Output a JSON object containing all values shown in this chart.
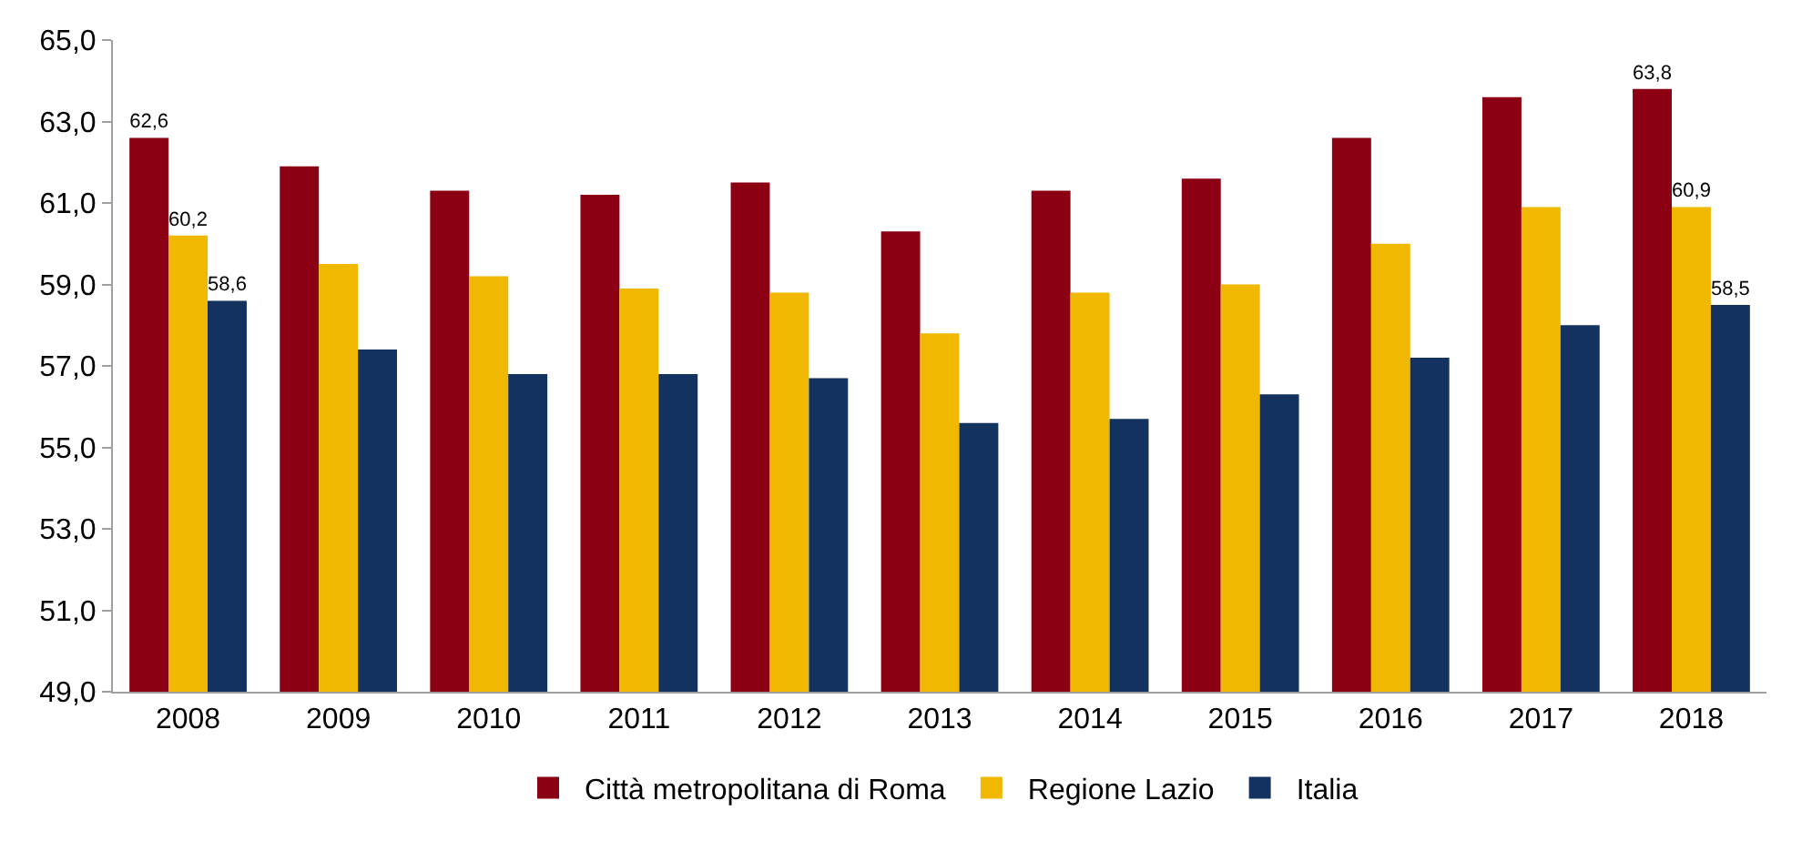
{
  "chart_data": {
    "type": "bar",
    "categories": [
      "2008",
      "2009",
      "2010",
      "2011",
      "2012",
      "2013",
      "2014",
      "2015",
      "2016",
      "2017",
      "2018"
    ],
    "series": [
      {
        "name": "Città metropolitana di Roma",
        "color": "#8c0014",
        "values": [
          62.6,
          61.9,
          61.3,
          61.2,
          61.5,
          60.3,
          61.3,
          61.6,
          62.6,
          63.6,
          63.8
        ],
        "value_labels": [
          "62,6",
          null,
          null,
          null,
          null,
          null,
          null,
          null,
          null,
          null,
          "63,8"
        ]
      },
      {
        "name": "Regione Lazio",
        "color": "#f0b800",
        "values": [
          60.2,
          59.5,
          59.2,
          58.9,
          58.8,
          57.8,
          58.8,
          59.0,
          60.0,
          60.9,
          60.9
        ],
        "value_labels": [
          "60,2",
          null,
          null,
          null,
          null,
          null,
          null,
          null,
          null,
          null,
          "60,9"
        ]
      },
      {
        "name": "Italia",
        "color": "#133260",
        "values": [
          58.6,
          57.4,
          56.8,
          56.8,
          56.7,
          55.6,
          55.7,
          56.3,
          57.2,
          58.0,
          58.5
        ],
        "value_labels": [
          "58,6",
          null,
          null,
          null,
          null,
          null,
          null,
          null,
          null,
          null,
          "58,5"
        ]
      }
    ],
    "ylim": [
      49,
      65
    ],
    "yticks": [
      {
        "value": 49,
        "label": "49,0"
      },
      {
        "value": 51,
        "label": "51,0"
      },
      {
        "value": 53,
        "label": "53,0"
      },
      {
        "value": 55,
        "label": "55,0"
      },
      {
        "value": 57,
        "label": "57,0"
      },
      {
        "value": 59,
        "label": "59,0"
      },
      {
        "value": 61,
        "label": "61,0"
      },
      {
        "value": 63,
        "label": "63,0"
      },
      {
        "value": 65,
        "label": "65,0"
      }
    ],
    "grid": false,
    "legend": "bottom"
  }
}
